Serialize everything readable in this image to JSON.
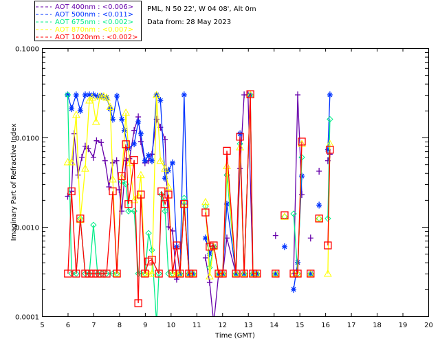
{
  "header": {
    "site": "PML, N 50 22', W 04 08', Alt 0m",
    "date": "Data from: 28 May 2023"
  },
  "chart_data": {
    "type": "line",
    "title": "PML, N 50 22', W 04 08', Alt 0m",
    "subtitle": "Data from: 28 May 2023",
    "xlabel": "Time (GMT)",
    "ylabel": "Imaginary Part of Refractive Index",
    "xlim": [
      5,
      20
    ],
    "ylim": [
      0.0001,
      0.1
    ],
    "yscale": "log",
    "xticks": [
      "5",
      "6",
      "7",
      "8",
      "9",
      "10",
      "11",
      "12",
      "13",
      "14",
      "15",
      "16",
      "17",
      "18",
      "19",
      "20"
    ],
    "yticks": [
      "0.0001",
      "0.0010",
      "0.0100",
      "0.1000"
    ],
    "legend_position": "top-left outside",
    "series": [
      {
        "name": "AOT  400nm : <0.006>",
        "color": "#6600aa",
        "marker": "plus",
        "points": [
          [
            6.0,
            0.0022
          ],
          [
            6.15,
            0.0025
          ],
          [
            6.25,
            0.011
          ],
          [
            6.4,
            0.0038
          ],
          [
            6.55,
            0.006
          ],
          [
            6.68,
            0.008
          ],
          [
            6.8,
            0.0075
          ],
          [
            7.0,
            0.006
          ],
          [
            7.12,
            0.0092
          ],
          [
            7.3,
            0.0088
          ],
          [
            7.45,
            0.0055
          ],
          [
            7.6,
            0.0028
          ],
          [
            7.75,
            0.0052
          ],
          [
            7.9,
            0.0055
          ],
          [
            8.0,
            0.0026
          ],
          [
            8.1,
            0.0015
          ],
          [
            8.26,
            0.0055
          ],
          [
            8.4,
            0.0058
          ],
          [
            8.58,
            0.012
          ],
          [
            8.74,
            0.017
          ],
          [
            8.84,
            0.009
          ],
          [
            9.0,
            0.0052
          ],
          [
            9.14,
            0.0055
          ],
          [
            9.27,
            0.0065
          ],
          [
            9.45,
            0.016
          ],
          [
            9.6,
            0.013
          ],
          [
            9.78,
            0.0095
          ],
          [
            9.91,
            0.001
          ],
          [
            10.07,
            0.0009
          ],
          [
            10.23,
            0.00026
          ],
          [
            10.36,
            0.0003
          ],
          [
            10.52,
            0.0018
          ],
          [
            10.71,
            0.0003
          ],
          [
            10.87,
            0.0003
          ],
          null,
          [
            11.35,
            0.00045
          ],
          [
            11.51,
            0.00024
          ],
          [
            11.67,
            5e-05
          ],
          [
            11.86,
            0.0003
          ],
          [
            12.02,
            0.0003
          ],
          [
            12.18,
            0.00075
          ],
          [
            12.53,
            0.0003
          ],
          [
            12.69,
            0.0045
          ],
          [
            12.85,
            0.03
          ],
          [
            13.0,
            0.03
          ],
          [
            13.19,
            0.0003
          ],
          [
            13.35,
            0.0003
          ],
          null,
          [
            14.07,
            0.0008
          ],
          null,
          [
            14.77,
            0.0003
          ],
          [
            14.93,
            0.03
          ],
          [
            15.09,
            0.0023
          ],
          null,
          [
            15.43,
            0.00075
          ],
          null,
          [
            15.76,
            0.0042
          ],
          null,
          [
            16.1,
            0.0055
          ],
          [
            16.18,
            0.0065
          ]
        ]
      },
      {
        "name": "AOT  500nm : <0.011>",
        "color": "#0033ff",
        "marker": "asterisk",
        "points": [
          [
            6.0,
            0.03
          ],
          [
            6.15,
            0.021
          ],
          [
            6.33,
            0.03
          ],
          [
            6.49,
            0.02
          ],
          [
            6.68,
            0.03
          ],
          [
            6.84,
            0.03
          ],
          [
            7.0,
            0.03
          ],
          [
            7.16,
            0.029
          ],
          [
            7.32,
            0.029
          ],
          [
            7.51,
            0.028
          ],
          [
            7.65,
            0.021
          ],
          [
            7.75,
            0.016
          ],
          [
            7.91,
            0.029
          ],
          [
            8.1,
            0.016
          ],
          [
            8.2,
            0.012
          ],
          [
            8.36,
            0.0075
          ],
          [
            8.58,
            0.0085
          ],
          [
            8.74,
            0.015
          ],
          [
            8.84,
            0.011
          ],
          [
            9.0,
            0.0055
          ],
          [
            9.14,
            0.0063
          ],
          [
            9.27,
            0.0055
          ],
          [
            9.45,
            0.03
          ],
          [
            9.6,
            0.026
          ],
          [
            9.78,
            0.0035
          ],
          [
            9.91,
            0.0043
          ],
          [
            10.07,
            0.0052
          ],
          [
            10.23,
            0.0006
          ],
          [
            10.36,
            0.0003
          ],
          [
            10.52,
            0.03
          ],
          [
            10.71,
            0.0003
          ],
          [
            10.87,
            0.0003
          ],
          null,
          [
            11.35,
            0.00075
          ],
          [
            11.51,
            0.0005
          ],
          [
            11.67,
            0.0006
          ],
          [
            11.86,
            0.0003
          ],
          [
            12.02,
            0.0003
          ],
          [
            12.18,
            0.0018
          ],
          [
            12.53,
            0.0003
          ],
          [
            12.69,
            0.011
          ],
          [
            12.85,
            0.0003
          ],
          [
            13.09,
            0.03
          ],
          [
            13.19,
            0.0003
          ],
          [
            13.35,
            0.0003
          ],
          null,
          [
            14.07,
            0.0003
          ],
          null,
          [
            14.42,
            0.0006
          ],
          null,
          [
            14.77,
            0.0002
          ],
          [
            14.93,
            0.0004
          ],
          [
            15.09,
            0.0037
          ],
          null,
          [
            15.43,
            0.0003
          ],
          null,
          [
            15.76,
            0.00175
          ],
          null,
          [
            16.1,
            0.0073
          ],
          [
            16.18,
            0.03
          ]
        ]
      },
      {
        "name": "AOT  675nm : <0.002>",
        "color": "#00ee88",
        "marker": "diamond",
        "points": [
          [
            6.0,
            0.03
          ],
          [
            6.15,
            0.0003
          ],
          [
            6.33,
            0.0003
          ],
          [
            6.49,
            0.00124
          ],
          [
            6.68,
            0.0003
          ],
          [
            6.84,
            0.0003
          ],
          [
            7.0,
            0.00105
          ],
          [
            7.16,
            0.0003
          ],
          [
            7.32,
            0.0003
          ],
          [
            7.51,
            0.0003
          ],
          [
            7.75,
            0.0003
          ],
          [
            7.91,
            0.0003
          ],
          [
            8.1,
            0.0032
          ],
          [
            8.26,
            0.003
          ],
          [
            8.36,
            0.0015
          ],
          [
            8.58,
            0.0015
          ],
          [
            8.74,
            0.0003
          ],
          [
            8.84,
            0.0003
          ],
          [
            9.0,
            0.0003
          ],
          [
            9.14,
            0.00085
          ],
          [
            9.27,
            0.00055
          ],
          [
            9.45,
            6e-05
          ],
          [
            9.54,
            0.0003
          ],
          [
            9.64,
            0.0023
          ],
          [
            9.78,
            0.0015
          ],
          [
            9.91,
            0.0003
          ],
          [
            10.07,
            0.0003
          ],
          [
            10.23,
            0.0003
          ],
          [
            10.36,
            0.0003
          ],
          [
            10.52,
            0.0021
          ],
          [
            10.71,
            0.0003
          ],
          [
            10.87,
            0.0003
          ],
          null,
          [
            11.35,
            0.0017
          ],
          [
            11.51,
            0.00035
          ],
          [
            11.67,
            0.0006
          ],
          [
            11.86,
            0.0003
          ],
          [
            12.02,
            0.0003
          ],
          [
            12.18,
            0.0038
          ],
          [
            12.53,
            0.0003
          ],
          [
            12.69,
            0.0085
          ],
          [
            12.85,
            0.0003
          ],
          [
            13.09,
            0.03
          ],
          [
            13.19,
            0.0003
          ],
          [
            13.35,
            0.0003
          ],
          null,
          [
            14.07,
            0.0003
          ],
          null,
          [
            14.42,
            0.0013
          ],
          null,
          [
            14.77,
            0.0014
          ],
          [
            14.93,
            0.0003
          ],
          [
            15.09,
            0.006
          ],
          null,
          [
            15.43,
            0.0003
          ],
          null,
          [
            15.76,
            0.00124
          ],
          null,
          [
            16.1,
            0.00124
          ],
          [
            16.18,
            0.016
          ]
        ]
      },
      {
        "name": "AOT  870nm : <0.007>",
        "color": "#ffff00",
        "marker": "triangle",
        "points": [
          [
            6.0,
            0.0053
          ],
          [
            6.15,
            0.0053
          ],
          [
            6.33,
            0.018
          ],
          [
            6.49,
            0.0012
          ],
          [
            6.68,
            0.0045
          ],
          [
            6.84,
            0.026
          ],
          [
            6.95,
            0.028
          ],
          [
            7.1,
            0.015
          ],
          [
            7.25,
            0.029
          ],
          [
            7.4,
            0.029
          ],
          [
            7.51,
            0.028
          ],
          [
            7.65,
            0.022
          ],
          [
            7.75,
            0.0034
          ],
          [
            7.91,
            0.0003
          ],
          [
            8.1,
            0.0036
          ],
          [
            8.26,
            0.019
          ],
          [
            8.4,
            0.0052
          ],
          [
            8.58,
            0.002
          ],
          [
            8.74,
            0.0022
          ],
          [
            8.84,
            0.0038
          ],
          [
            9.0,
            0.0003
          ],
          [
            9.14,
            0.0003
          ],
          [
            9.27,
            0.0003
          ],
          [
            9.45,
            0.03
          ],
          [
            9.6,
            0.0055
          ],
          [
            9.78,
            0.0045
          ],
          [
            9.91,
            0.0028
          ],
          [
            10.07,
            0.0003
          ],
          [
            10.23,
            0.0003
          ],
          [
            10.36,
            0.0003
          ],
          [
            10.52,
            0.0018
          ],
          [
            10.71,
            0.0003
          ],
          [
            10.87,
            0.0003
          ],
          null,
          [
            11.35,
            0.0019
          ],
          [
            11.51,
            0.00028
          ],
          [
            11.67,
            0.0006
          ],
          [
            11.86,
            0.0003
          ],
          [
            12.02,
            0.0003
          ],
          [
            12.18,
            0.0048
          ],
          [
            12.53,
            0.0003
          ],
          [
            12.69,
            0.0078
          ],
          [
            12.85,
            0.0003
          ],
          [
            13.09,
            0.03
          ],
          [
            13.19,
            0.0003
          ],
          [
            13.35,
            0.0003
          ],
          null,
          [
            14.07,
            0.0003
          ],
          null,
          [
            14.42,
            0.0013
          ],
          null,
          [
            14.77,
            0.0003
          ],
          [
            14.93,
            0.0003
          ],
          [
            15.09,
            0.0085
          ],
          null,
          [
            15.43,
            0.0003
          ],
          null,
          [
            15.76,
            0.00124
          ],
          null,
          [
            16.1,
            0.0003
          ],
          [
            16.18,
            0.0085
          ]
        ]
      },
      {
        "name": "AOT 1020nm : <0.002>",
        "color": "#ff0000",
        "marker": "square",
        "points": [
          [
            6.01,
            0.0003
          ],
          [
            6.15,
            0.0025
          ],
          [
            6.33,
            0.0003
          ],
          [
            6.49,
            0.00124
          ],
          [
            6.68,
            0.0003
          ],
          [
            6.84,
            0.0003
          ],
          [
            7.0,
            0.0003
          ],
          [
            7.16,
            0.0003
          ],
          [
            7.32,
            0.0003
          ],
          [
            7.51,
            0.0003
          ],
          [
            7.75,
            0.0025
          ],
          [
            7.91,
            0.0003
          ],
          [
            8.1,
            0.0037
          ],
          [
            8.26,
            0.0084
          ],
          [
            8.36,
            0.0018
          ],
          [
            8.58,
            0.0056
          ],
          [
            8.74,
            0.00014
          ],
          [
            8.84,
            0.0023
          ],
          [
            9.0,
            0.0003
          ],
          [
            9.14,
            0.00041
          ],
          [
            9.27,
            0.00043
          ],
          [
            9.54,
            0.0003
          ],
          [
            9.64,
            0.0025
          ],
          [
            9.78,
            0.0018
          ],
          [
            9.91,
            0.0023
          ],
          [
            10.07,
            0.0003
          ],
          [
            10.23,
            0.00062
          ],
          [
            10.36,
            0.0003
          ],
          [
            10.52,
            0.0018
          ],
          [
            10.71,
            0.0003
          ],
          [
            10.87,
            0.0003
          ],
          null,
          [
            11.35,
            0.00145
          ],
          [
            11.51,
            0.0006
          ],
          [
            11.67,
            0.00062
          ],
          [
            11.86,
            0.0003
          ],
          [
            12.02,
            0.0003
          ],
          [
            12.18,
            0.0071
          ],
          [
            12.53,
            0.0003
          ],
          [
            12.69,
            0.0102
          ],
          [
            12.85,
            0.0003
          ],
          [
            13.09,
            0.0305
          ],
          [
            13.19,
            0.0003
          ],
          [
            13.35,
            0.0003
          ],
          null,
          [
            14.07,
            0.0003
          ],
          null,
          [
            14.42,
            0.00135
          ],
          null,
          [
            14.77,
            0.0003
          ],
          [
            14.93,
            0.0003
          ],
          [
            15.09,
            0.009
          ],
          null,
          [
            15.43,
            0.0003
          ],
          null,
          [
            15.76,
            0.00124
          ],
          null,
          [
            16.1,
            0.00062
          ],
          [
            16.18,
            0.0073
          ]
        ]
      }
    ]
  }
}
